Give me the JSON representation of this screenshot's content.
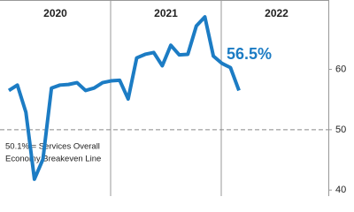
{
  "chart_data": {
    "type": "line",
    "x_bands": [
      "2020",
      "2021",
      "2022"
    ],
    "categories": [
      null,
      null,
      null,
      null,
      null,
      null,
      null,
      null,
      null,
      null,
      null,
      null,
      null,
      null,
      null,
      null,
      null,
      null,
      null,
      null,
      null,
      null,
      null,
      null,
      null,
      null,
      null,
      null
    ],
    "series": [
      {
        "color": "#1c7cc4",
        "values": [
          56.5,
          57.4,
          52.9,
          41.8,
          45.1,
          56.9,
          57.4,
          57.5,
          57.8,
          56.5,
          56.9,
          57.8,
          58.1,
          58.2,
          55.1,
          61.9,
          62.5,
          62.8,
          60.6,
          64.0,
          62.4,
          62.5,
          67.2,
          68.7,
          62.2,
          61.0,
          60.3,
          56.5
        ],
        "value_labels": [
          null,
          null,
          null,
          null,
          null,
          null,
          null,
          null,
          null,
          null,
          null,
          null,
          null,
          null,
          null,
          null,
          null,
          null,
          null,
          null,
          null,
          null,
          null,
          null,
          null,
          null,
          null,
          "56.5%"
        ]
      }
    ],
    "ylim": [
      39,
      71.5
    ],
    "yticks": [
      40,
      50,
      60
    ],
    "reference_line": 50,
    "annotation": [
      "50.1% = Services Overall",
      "Economy Breakeven Line"
    ]
  }
}
